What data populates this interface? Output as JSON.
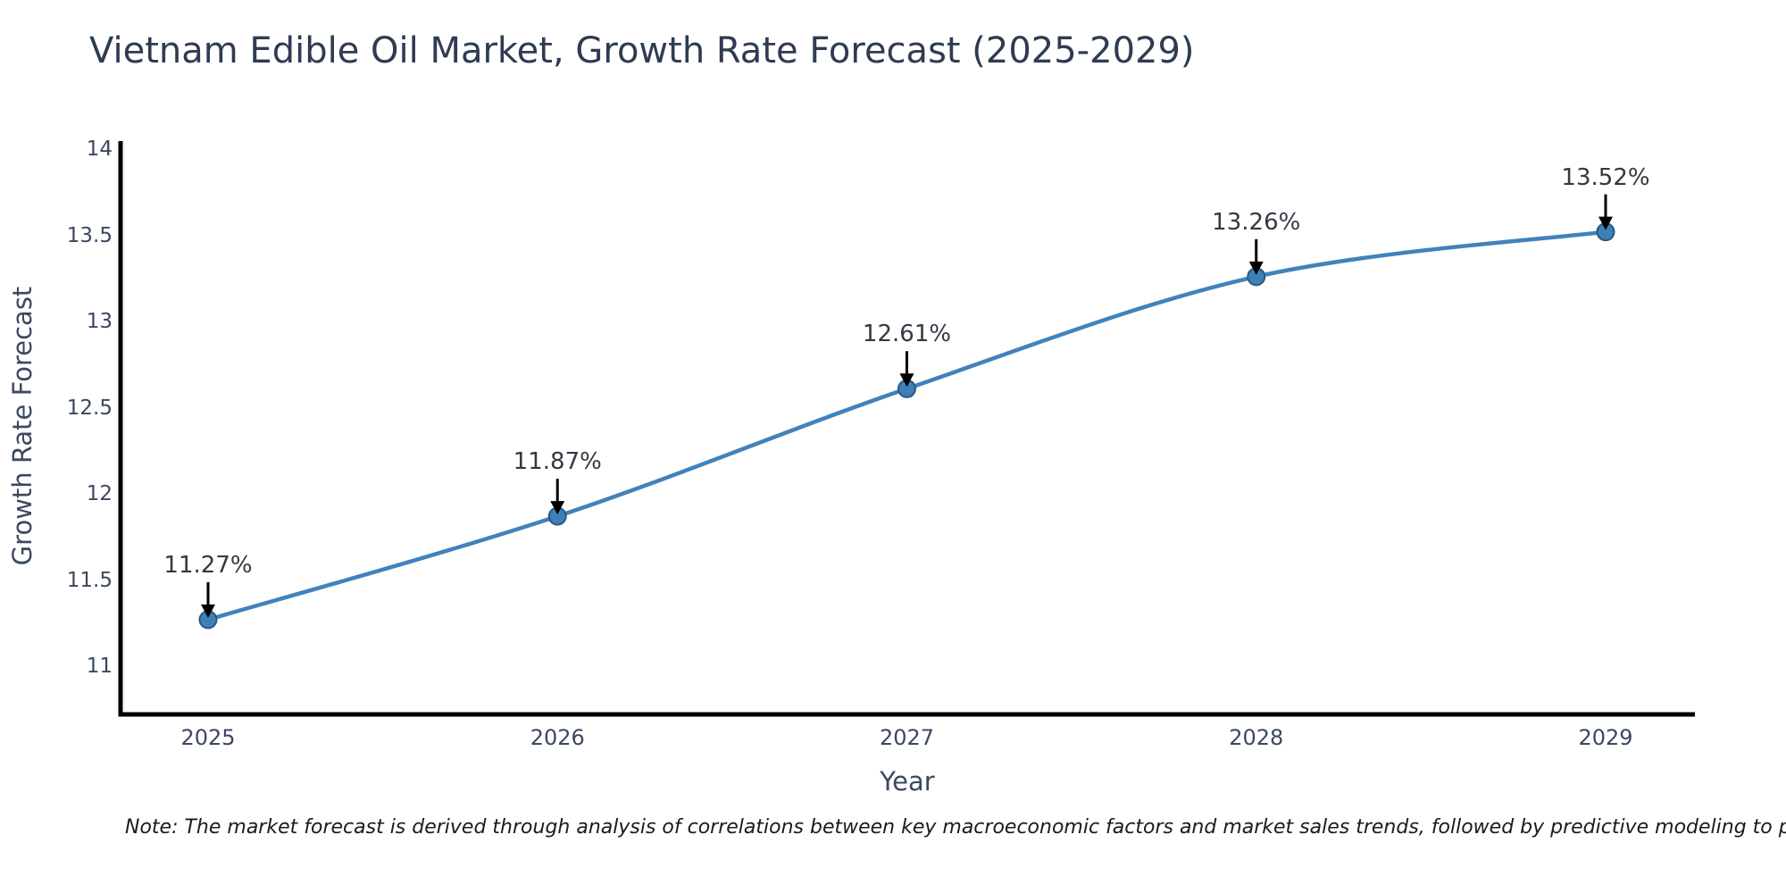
{
  "note": "Note: The market forecast is derived through analysis of correlations between key macroeconomic factors and market sales trends, followed by predictive modeling to project future sales.",
  "chart_data": {
    "type": "line",
    "title": "Vietnam Edible Oil Market, Growth Rate Forecast (2025-2029)",
    "xlabel": "Year",
    "ylabel": "Growth Rate Forecast",
    "x": [
      2025,
      2026,
      2027,
      2028,
      2029
    ],
    "xticklabels": [
      "2025",
      "2026",
      "2027",
      "2028",
      "2029"
    ],
    "values": [
      11.27,
      11.87,
      12.61,
      13.26,
      13.52
    ],
    "point_labels": [
      "11.27%",
      "11.87%",
      "12.61%",
      "13.26%",
      "13.52%"
    ],
    "yticks": [
      14,
      13.5,
      13,
      12.5,
      12,
      11.5,
      11
    ],
    "yticklabels": [
      "14",
      "13.5",
      "13",
      "12.5",
      "12",
      "11.5",
      "11"
    ],
    "ylim": [
      10.72,
      14.05
    ],
    "grid": false,
    "legend": null,
    "smooth": true,
    "colors": {
      "line": "#4182bc",
      "marker_fill": "#3f7fb8",
      "marker_edge": "#2b587f",
      "axis": "#000000",
      "arrow": "#000000"
    }
  }
}
